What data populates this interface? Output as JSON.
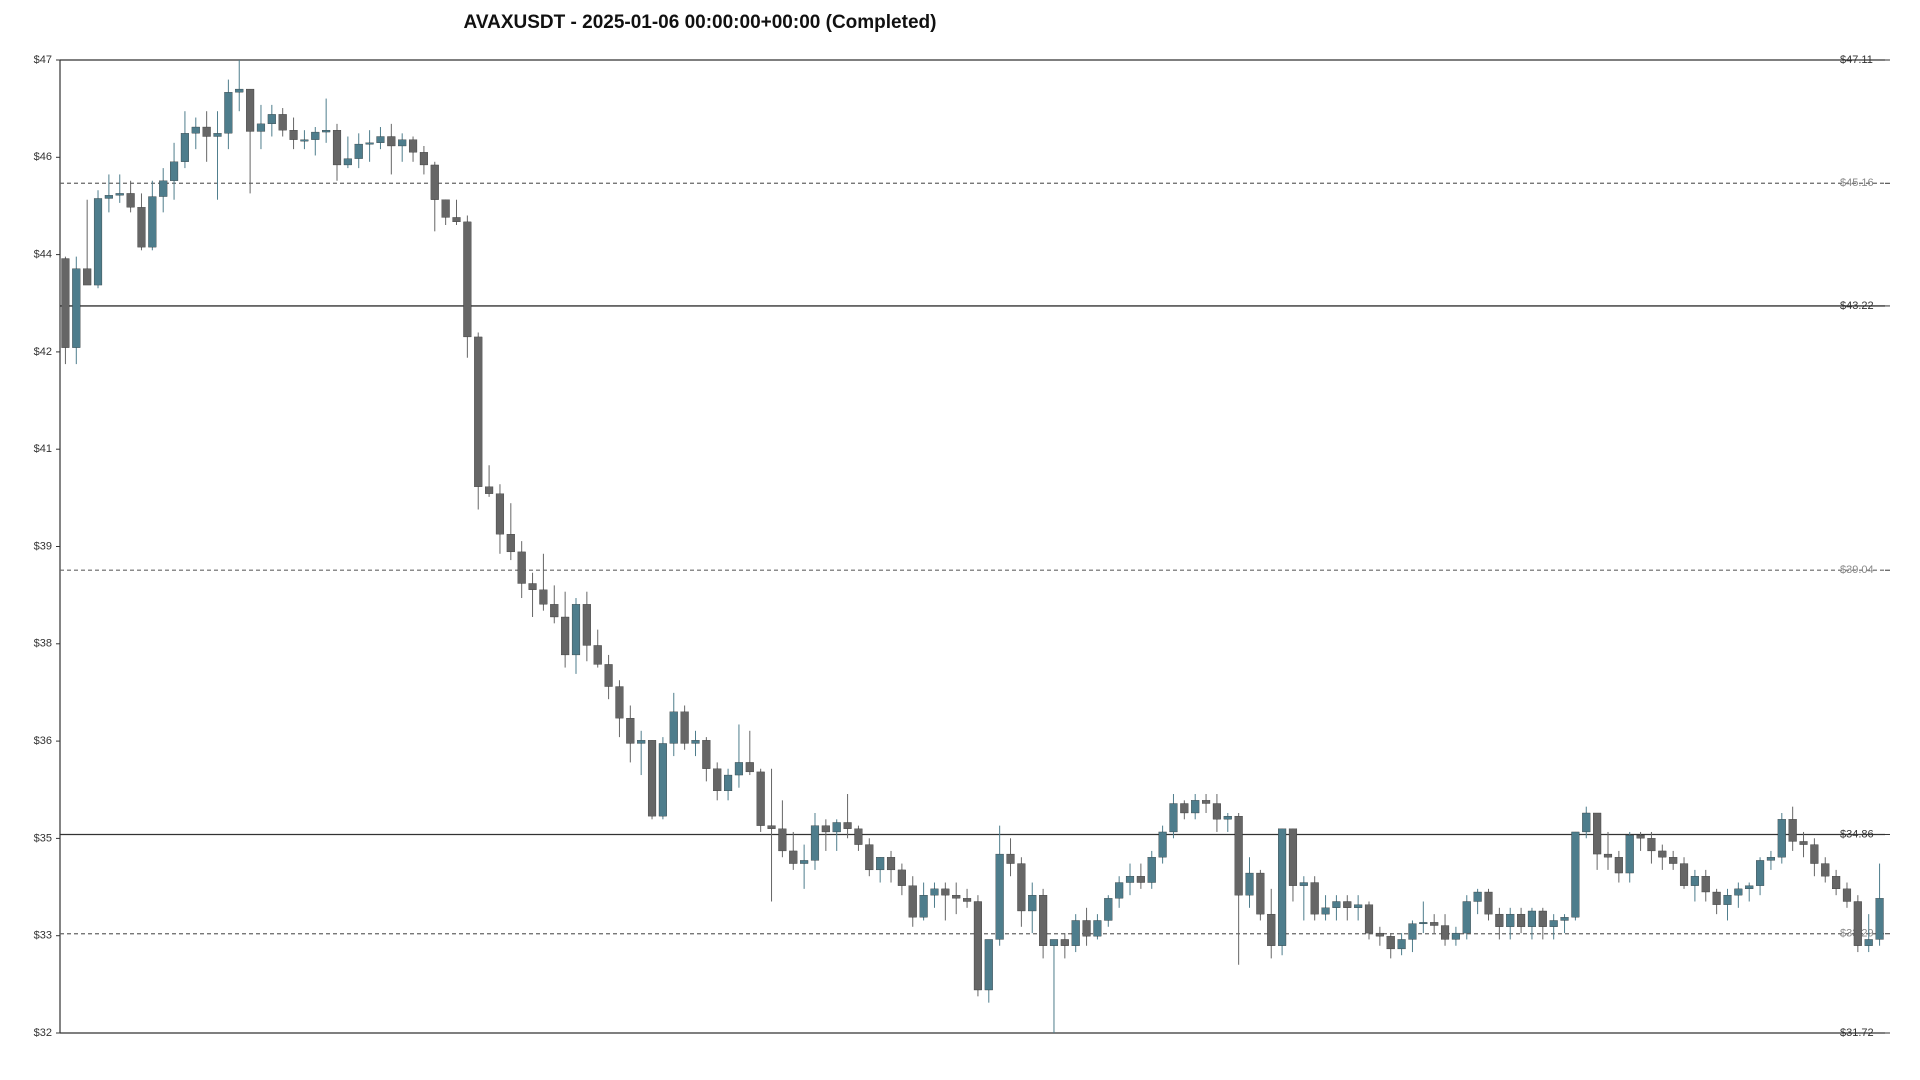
{
  "chart_data": {
    "type": "candlestick",
    "title": "AVAXUSDT - 2025-01-06 00:00:00+00:00 (Completed)",
    "up_color": "#4e7d8c",
    "down_color": "#666666",
    "ylim": [
      31.72,
      47.11
    ],
    "yticks": [
      {
        "value": 31.72,
        "label": "$32"
      },
      {
        "value": 33.259,
        "label": "$33"
      },
      {
        "value": 34.798,
        "label": "$35"
      },
      {
        "value": 36.337,
        "label": "$36"
      },
      {
        "value": 37.876,
        "label": "$38"
      },
      {
        "value": 39.415,
        "label": "$39"
      },
      {
        "value": 40.954,
        "label": "$41"
      },
      {
        "value": 42.493,
        "label": "$42"
      },
      {
        "value": 44.032,
        "label": "$44"
      },
      {
        "value": 45.571,
        "label": "$46"
      },
      {
        "value": 47.11,
        "label": "$47"
      }
    ],
    "levels": [
      {
        "value": 47.11,
        "label": "$47.11",
        "style": "solid"
      },
      {
        "value": 45.16,
        "label": "$45.16",
        "style": "dashed"
      },
      {
        "value": 43.22,
        "label": "$43.22",
        "style": "solid"
      },
      {
        "value": 39.04,
        "label": "$39.04",
        "style": "dashed"
      },
      {
        "value": 34.86,
        "label": "$34.86",
        "style": "solid"
      },
      {
        "value": 33.29,
        "label": "$33.29",
        "style": "dashed"
      },
      {
        "value": 31.72,
        "label": "$31.72",
        "style": "solid"
      }
    ],
    "ohlc": [
      [
        43.97,
        44.0,
        42.3,
        42.56
      ],
      [
        42.56,
        44.0,
        42.3,
        43.81
      ],
      [
        43.81,
        44.9,
        43.6,
        43.55
      ],
      [
        43.55,
        45.05,
        43.5,
        44.92
      ],
      [
        44.92,
        45.3,
        44.7,
        44.97
      ],
      [
        44.97,
        45.3,
        44.85,
        45.0
      ],
      [
        45.0,
        45.2,
        44.7,
        44.78
      ],
      [
        44.78,
        45.0,
        44.1,
        44.15
      ],
      [
        44.15,
        45.2,
        44.1,
        44.95
      ],
      [
        44.95,
        45.4,
        44.7,
        45.2
      ],
      [
        45.2,
        45.8,
        44.9,
        45.5
      ],
      [
        45.5,
        46.3,
        45.4,
        45.95
      ],
      [
        45.95,
        46.2,
        45.7,
        46.05
      ],
      [
        46.05,
        46.3,
        45.5,
        45.9
      ],
      [
        45.9,
        46.3,
        44.9,
        45.95
      ],
      [
        45.95,
        46.8,
        45.7,
        46.6
      ],
      [
        46.6,
        47.11,
        46.3,
        46.65
      ],
      [
        46.65,
        46.65,
        45.0,
        45.98
      ],
      [
        45.98,
        46.4,
        45.7,
        46.1
      ],
      [
        46.1,
        46.4,
        45.9,
        46.25
      ],
      [
        46.25,
        46.35,
        45.9,
        46.0
      ],
      [
        46.0,
        46.2,
        45.7,
        45.85
      ],
      [
        45.85,
        46.0,
        45.7,
        45.85
      ],
      [
        45.85,
        46.05,
        45.6,
        45.97
      ],
      [
        45.97,
        46.5,
        45.8,
        46.0
      ],
      [
        46.0,
        46.1,
        45.2,
        45.45
      ],
      [
        45.45,
        45.9,
        45.4,
        45.55
      ],
      [
        45.55,
        45.95,
        45.4,
        45.78
      ],
      [
        45.78,
        46.0,
        45.5,
        45.8
      ],
      [
        45.8,
        46.05,
        45.7,
        45.9
      ],
      [
        45.9,
        46.1,
        45.3,
        45.75
      ],
      [
        45.75,
        45.95,
        45.5,
        45.85
      ],
      [
        45.85,
        45.9,
        45.5,
        45.65
      ],
      [
        45.65,
        45.75,
        45.3,
        45.45
      ],
      [
        45.45,
        45.5,
        44.4,
        44.9
      ],
      [
        44.9,
        44.9,
        44.5,
        44.62
      ],
      [
        44.62,
        44.9,
        44.5,
        44.55
      ],
      [
        44.55,
        44.65,
        42.4,
        42.73
      ],
      [
        42.73,
        42.8,
        40.0,
        40.36
      ],
      [
        40.36,
        40.7,
        40.2,
        40.25
      ],
      [
        40.25,
        40.4,
        39.3,
        39.61
      ],
      [
        39.61,
        40.1,
        39.2,
        39.33
      ],
      [
        39.33,
        39.5,
        38.6,
        38.83
      ],
      [
        38.83,
        39.0,
        38.3,
        38.73
      ],
      [
        38.73,
        39.3,
        38.4,
        38.5
      ],
      [
        38.5,
        38.8,
        38.2,
        38.3
      ],
      [
        38.3,
        38.7,
        37.5,
        37.7
      ],
      [
        37.7,
        38.6,
        37.4,
        38.5
      ],
      [
        38.5,
        38.7,
        37.6,
        37.85
      ],
      [
        37.85,
        38.1,
        37.5,
        37.55
      ],
      [
        37.55,
        37.7,
        37.0,
        37.2
      ],
      [
        37.2,
        37.3,
        36.4,
        36.7
      ],
      [
        36.7,
        36.9,
        36.0,
        36.3
      ],
      [
        36.3,
        36.5,
        35.8,
        36.35
      ],
      [
        36.35,
        36.35,
        35.1,
        35.15
      ],
      [
        35.15,
        36.4,
        35.1,
        36.3
      ],
      [
        36.3,
        37.1,
        36.1,
        36.8
      ],
      [
        36.8,
        36.9,
        36.2,
        36.3
      ],
      [
        36.3,
        36.5,
        36.1,
        36.35
      ],
      [
        36.35,
        36.4,
        35.7,
        35.9
      ],
      [
        35.9,
        36.0,
        35.4,
        35.55
      ],
      [
        35.55,
        35.9,
        35.4,
        35.8
      ],
      [
        35.8,
        36.6,
        35.6,
        36.0
      ],
      [
        36.0,
        36.5,
        35.8,
        35.85
      ],
      [
        35.85,
        35.9,
        34.9,
        35.0
      ],
      [
        35.0,
        35.9,
        33.8,
        34.95
      ],
      [
        34.95,
        35.4,
        34.5,
        34.6
      ],
      [
        34.6,
        34.9,
        34.3,
        34.4
      ],
      [
        34.4,
        34.7,
        34.0,
        34.45
      ],
      [
        34.45,
        35.2,
        34.3,
        35.0
      ],
      [
        35.0,
        35.1,
        34.6,
        34.9
      ],
      [
        34.9,
        35.1,
        34.6,
        35.05
      ],
      [
        35.05,
        35.5,
        34.8,
        34.95
      ],
      [
        34.95,
        35.0,
        34.6,
        34.7
      ],
      [
        34.7,
        34.8,
        34.2,
        34.3
      ],
      [
        34.3,
        34.5,
        34.1,
        34.5
      ],
      [
        34.5,
        34.6,
        34.1,
        34.3
      ],
      [
        34.3,
        34.4,
        33.9,
        34.05
      ],
      [
        34.05,
        34.2,
        33.4,
        33.55
      ],
      [
        33.55,
        34.1,
        33.5,
        33.9
      ],
      [
        33.9,
        34.1,
        33.7,
        34.0
      ],
      [
        34.0,
        34.1,
        33.5,
        33.9
      ],
      [
        33.9,
        34.1,
        33.6,
        33.85
      ],
      [
        33.85,
        34.0,
        33.7,
        33.8
      ],
      [
        33.8,
        33.9,
        32.3,
        32.4
      ],
      [
        32.4,
        33.1,
        32.2,
        33.2
      ],
      [
        33.2,
        35.0,
        33.1,
        34.55
      ],
      [
        34.55,
        34.8,
        34.2,
        34.4
      ],
      [
        34.4,
        34.5,
        33.4,
        33.65
      ],
      [
        33.65,
        34.1,
        33.3,
        33.9
      ],
      [
        33.9,
        34.0,
        32.9,
        33.1
      ],
      [
        33.1,
        33.2,
        31.72,
        33.2
      ],
      [
        33.2,
        33.3,
        32.9,
        33.1
      ],
      [
        33.1,
        33.6,
        33.0,
        33.5
      ],
      [
        33.5,
        33.7,
        33.1,
        33.25
      ],
      [
        33.25,
        33.6,
        33.2,
        33.5
      ],
      [
        33.5,
        33.9,
        33.4,
        33.85
      ],
      [
        33.85,
        34.2,
        33.7,
        34.1
      ],
      [
        34.1,
        34.4,
        33.9,
        34.2
      ],
      [
        34.2,
        34.4,
        34.0,
        34.1
      ],
      [
        34.1,
        34.6,
        34.0,
        34.5
      ],
      [
        34.5,
        35.0,
        34.4,
        34.9
      ],
      [
        34.9,
        35.5,
        34.8,
        35.35
      ],
      [
        35.35,
        35.4,
        35.1,
        35.2
      ],
      [
        35.2,
        35.5,
        35.1,
        35.4
      ],
      [
        35.4,
        35.5,
        35.2,
        35.35
      ],
      [
        35.35,
        35.5,
        34.9,
        35.1
      ],
      [
        35.1,
        35.2,
        34.9,
        35.15
      ],
      [
        35.15,
        35.2,
        32.8,
        33.9
      ],
      [
        33.9,
        34.5,
        33.7,
        34.25
      ],
      [
        34.25,
        34.3,
        33.5,
        33.6
      ],
      [
        33.6,
        34.0,
        32.9,
        33.1
      ],
      [
        33.1,
        34.95,
        32.95,
        34.95
      ],
      [
        34.95,
        34.95,
        33.8,
        34.05
      ],
      [
        34.05,
        34.2,
        33.5,
        34.1
      ],
      [
        34.1,
        34.2,
        33.5,
        33.6
      ],
      [
        33.6,
        33.9,
        33.5,
        33.7
      ],
      [
        33.7,
        33.9,
        33.5,
        33.8
      ],
      [
        33.8,
        33.9,
        33.5,
        33.7
      ],
      [
        33.7,
        33.9,
        33.5,
        33.75
      ],
      [
        33.75,
        33.8,
        33.2,
        33.3
      ],
      [
        33.3,
        33.4,
        33.1,
        33.25
      ],
      [
        33.25,
        33.3,
        32.9,
        33.05
      ],
      [
        33.05,
        33.3,
        32.95,
        33.2
      ],
      [
        33.2,
        33.5,
        33.0,
        33.45
      ],
      [
        33.45,
        33.8,
        33.3,
        33.47
      ],
      [
        33.47,
        33.6,
        33.3,
        33.42
      ],
      [
        33.42,
        33.6,
        33.1,
        33.2
      ],
      [
        33.2,
        33.4,
        33.1,
        33.3
      ],
      [
        33.3,
        33.9,
        33.2,
        33.8
      ],
      [
        33.8,
        34.0,
        33.6,
        33.95
      ],
      [
        33.95,
        34.0,
        33.5,
        33.6
      ],
      [
        33.6,
        33.7,
        33.2,
        33.4
      ],
      [
        33.4,
        33.7,
        33.2,
        33.6
      ],
      [
        33.6,
        33.7,
        33.3,
        33.4
      ],
      [
        33.4,
        33.7,
        33.2,
        33.65
      ],
      [
        33.65,
        33.7,
        33.2,
        33.4
      ],
      [
        33.4,
        33.6,
        33.2,
        33.5
      ],
      [
        33.5,
        33.6,
        33.3,
        33.55
      ],
      [
        33.55,
        34.9,
        33.5,
        34.9
      ],
      [
        34.9,
        35.3,
        34.8,
        35.2
      ],
      [
        35.2,
        35.2,
        34.3,
        34.55
      ],
      [
        34.55,
        34.9,
        34.3,
        34.5
      ],
      [
        34.5,
        34.6,
        34.1,
        34.25
      ],
      [
        34.25,
        34.9,
        34.1,
        34.85
      ],
      [
        34.85,
        34.9,
        34.6,
        34.8
      ],
      [
        34.8,
        34.9,
        34.4,
        34.6
      ],
      [
        34.6,
        34.7,
        34.3,
        34.5
      ],
      [
        34.5,
        34.6,
        34.3,
        34.4
      ],
      [
        34.4,
        34.5,
        34.0,
        34.05
      ],
      [
        34.05,
        34.3,
        33.8,
        34.2
      ],
      [
        34.2,
        34.3,
        33.8,
        33.95
      ],
      [
        33.95,
        34.0,
        33.6,
        33.75
      ],
      [
        33.75,
        34.0,
        33.5,
        33.9
      ],
      [
        33.9,
        34.1,
        33.7,
        34.0
      ],
      [
        34.0,
        34.1,
        33.8,
        34.05
      ],
      [
        34.05,
        34.5,
        33.9,
        34.45
      ],
      [
        34.45,
        34.6,
        34.3,
        34.5
      ],
      [
        34.5,
        35.2,
        34.4,
        35.1
      ],
      [
        35.1,
        35.3,
        34.6,
        34.75
      ],
      [
        34.75,
        34.9,
        34.5,
        34.7
      ],
      [
        34.7,
        34.8,
        34.2,
        34.4
      ],
      [
        34.4,
        34.5,
        34.1,
        34.2
      ],
      [
        34.2,
        34.3,
        33.9,
        34.0
      ],
      [
        34.0,
        34.1,
        33.7,
        33.8
      ],
      [
        33.8,
        33.9,
        33.0,
        33.1
      ],
      [
        33.1,
        33.6,
        33.0,
        33.2
      ],
      [
        33.2,
        34.4,
        33.1,
        33.85
      ]
    ]
  }
}
